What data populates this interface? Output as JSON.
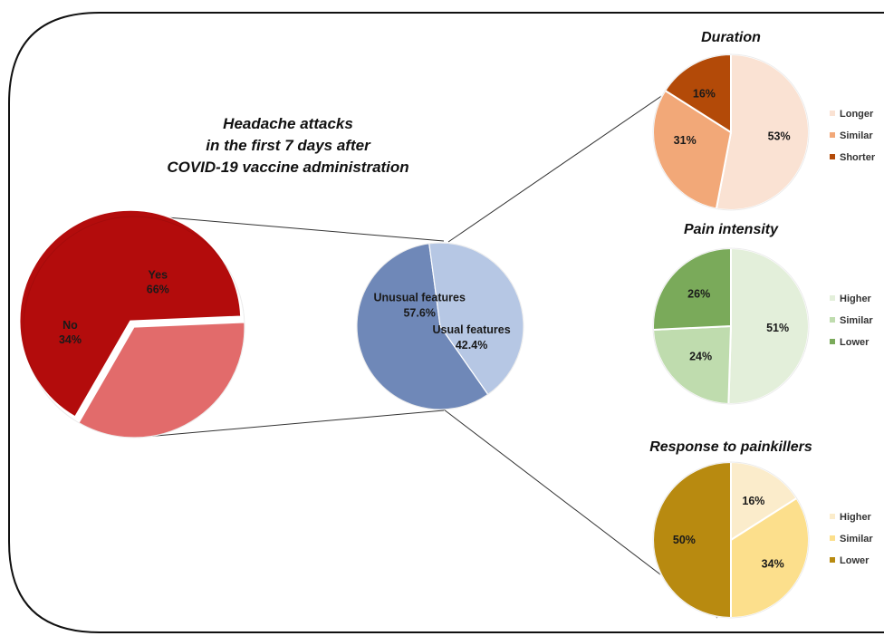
{
  "figure": {
    "title_lines": [
      "Headache attacks",
      "in the first 7 days after",
      "COVID-19 vaccine administration"
    ]
  },
  "chart_data": [
    {
      "type": "pie",
      "role": "headache-attacks",
      "categories": [
        "No",
        "Yes"
      ],
      "values": [
        34,
        66
      ],
      "labels": [
        "34%",
        "66%"
      ],
      "colors": [
        "#e26b6b",
        "#b30c0c"
      ],
      "title": "",
      "legend": "none"
    },
    {
      "type": "pie",
      "role": "features",
      "categories": [
        "Unusual features",
        "Usual features"
      ],
      "values": [
        57.6,
        42.4
      ],
      "labels": [
        "57.6%",
        "42.4%"
      ],
      "colors": [
        "#6f88b8",
        "#b6c7e4"
      ],
      "title": "",
      "legend": "none"
    },
    {
      "type": "pie",
      "role": "duration",
      "title": "Duration",
      "categories": [
        "Longer",
        "Similar",
        "Shorter"
      ],
      "values": [
        53,
        31,
        16
      ],
      "labels": [
        "53%",
        "31%",
        "16%"
      ],
      "colors": [
        "#fae2d3",
        "#f2a878",
        "#b34a08"
      ],
      "legend": "right"
    },
    {
      "type": "pie",
      "role": "pain-intensity",
      "title": "Pain intensity",
      "categories": [
        "Higher",
        "Similar",
        "Lower"
      ],
      "values": [
        51,
        24,
        26
      ],
      "labels": [
        "51%",
        "24%",
        "26%"
      ],
      "colors": [
        "#e3efda",
        "#bfdcae",
        "#7aaa5a"
      ],
      "legend": "right"
    },
    {
      "type": "pie",
      "role": "response-to-painkillers",
      "title": "Response to painkillers",
      "categories": [
        "Higher",
        "Similar",
        "Lower"
      ],
      "values": [
        16,
        34,
        50
      ],
      "labels": [
        "16%",
        "34%",
        "50%"
      ],
      "colors": [
        "#fbeccb",
        "#fcdf8c",
        "#b88a10"
      ],
      "legend": "right"
    }
  ]
}
